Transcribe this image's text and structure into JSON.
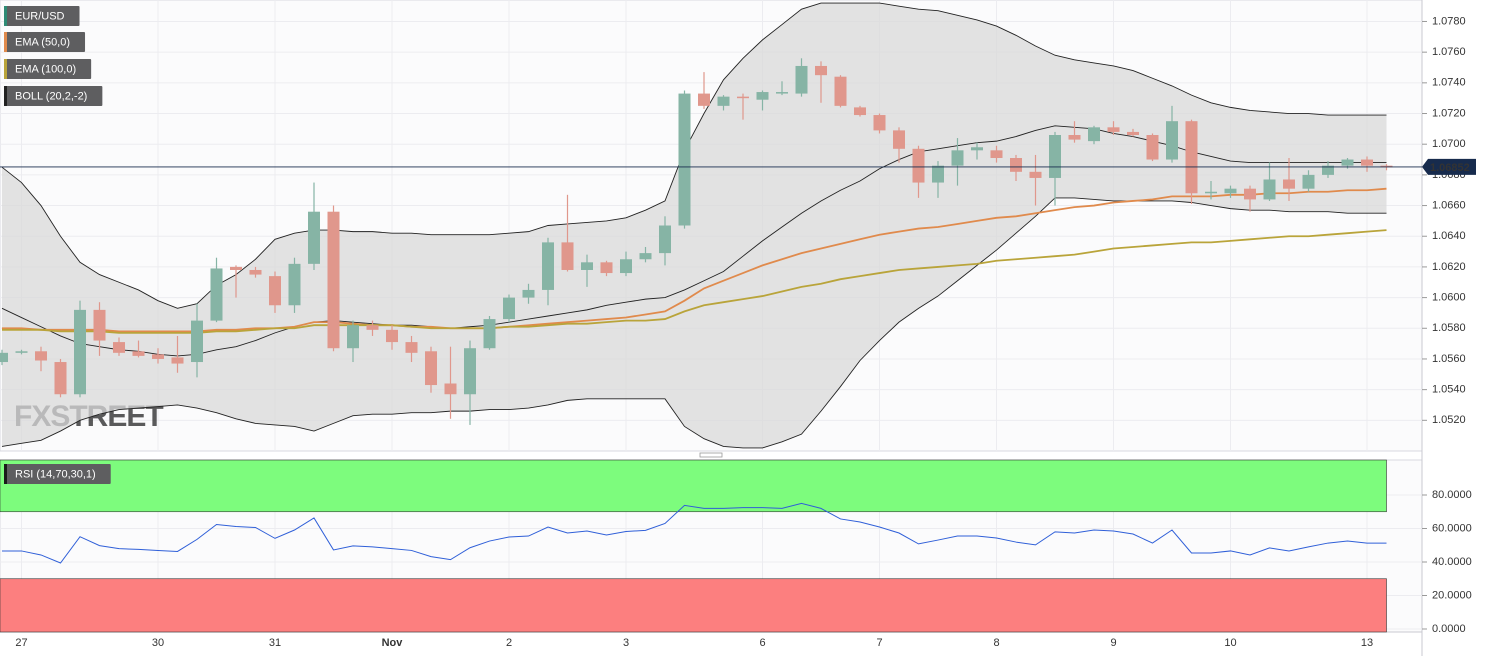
{
  "chart_data": {
    "type": "candlestick",
    "title": "EUR/USD",
    "watermark": "FXSTREET",
    "categories": [
      null,
      "27",
      null,
      null,
      null,
      null,
      null,
      null,
      "30",
      null,
      null,
      null,
      null,
      null,
      "31",
      null,
      null,
      null,
      null,
      null,
      "Nov",
      null,
      null,
      null,
      null,
      null,
      "2",
      null,
      null,
      null,
      null,
      null,
      "3",
      null,
      null,
      null,
      null,
      null,
      null,
      "6",
      null,
      null,
      null,
      null,
      null,
      "7",
      null,
      null,
      null,
      null,
      null,
      "8",
      null,
      null,
      null,
      null,
      null,
      "9",
      null,
      null,
      null,
      null,
      null,
      "10",
      null,
      null,
      null,
      null,
      null,
      null,
      "13",
      null
    ],
    "open": [
      1.0558,
      1.0564,
      1.0565,
      1.0558,
      1.0537,
      1.0592,
      1.0571,
      1.0565,
      1.0563,
      1.0561,
      1.0558,
      1.0585,
      1.062,
      1.0618,
      1.0614,
      1.0595,
      1.0622,
      1.0656,
      1.0567,
      1.0582,
      1.0579,
      1.0571,
      1.0565,
      1.0544,
      1.0537,
      1.0567,
      1.0586,
      1.06,
      1.0605,
      1.0636,
      1.0618,
      1.0623,
      1.0616,
      1.0625,
      1.0629,
      1.0647,
      1.0733,
      1.0725,
      1.0731,
      1.0729,
      1.0733,
      1.0733,
      1.0751,
      1.0744,
      1.0724,
      1.0719,
      1.0709,
      1.0697,
      1.0675,
      1.0686,
      1.0696,
      1.0696,
      1.0691,
      1.0682,
      1.0678,
      1.0706,
      1.0702,
      1.0711,
      1.0708,
      1.0706,
      1.069,
      1.0715,
      1.0668,
      1.0668,
      1.0671,
      1.0664,
      1.0677,
      1.0671,
      1.068,
      1.0686,
      1.069,
      1.0686
    ],
    "high": [
      1.0566,
      1.0566,
      1.0568,
      1.056,
      1.0598,
      1.0597,
      1.0574,
      1.0572,
      1.0567,
      1.0575,
      1.0596,
      1.0626,
      1.0621,
      1.062,
      1.0617,
      1.0626,
      1.0675,
      1.066,
      1.0585,
      1.0585,
      1.0582,
      1.0575,
      1.0568,
      1.0568,
      1.0572,
      1.0588,
      1.0602,
      1.0609,
      1.0639,
      1.0667,
      1.0628,
      1.0624,
      1.063,
      1.0633,
      1.0653,
      1.0735,
      1.0747,
      1.0732,
      1.0733,
      1.0735,
      1.0741,
      1.0756,
      1.0754,
      1.0745,
      1.0725,
      1.072,
      1.0711,
      1.0699,
      1.0689,
      1.0704,
      1.0701,
      1.0699,
      1.0693,
      1.0693,
      1.0708,
      1.0715,
      1.0712,
      1.0715,
      1.071,
      1.0707,
      1.0725,
      1.0716,
      1.0676,
      1.0673,
      1.0673,
      1.0688,
      1.0691,
      1.0683,
      1.0689,
      1.0691,
      1.0692,
      1.0687
    ],
    "low": [
      1.0556,
      1.0563,
      1.0552,
      1.0535,
      1.0535,
      1.0562,
      1.0562,
      1.0561,
      1.0557,
      1.0551,
      1.0548,
      1.0584,
      1.06,
      1.0613,
      1.059,
      1.059,
      1.0618,
      1.0565,
      1.0558,
      1.0575,
      1.0566,
      1.0558,
      1.0538,
      1.0521,
      1.0517,
      1.0566,
      1.0584,
      1.0596,
      1.0595,
      1.0617,
      1.0607,
      1.0614,
      1.0614,
      1.0623,
      1.0621,
      1.0645,
      1.0723,
      1.0722,
      1.0716,
      1.0722,
      1.0732,
      1.0731,
      1.0727,
      1.0724,
      1.0718,
      1.0707,
      1.0688,
      1.0665,
      1.0665,
      1.0673,
      1.069,
      1.0688,
      1.0676,
      1.066,
      1.066,
      1.0701,
      1.07,
      1.0706,
      1.0705,
      1.0689,
      1.0688,
      1.0661,
      1.0664,
      1.0665,
      1.0656,
      1.0663,
      1.0663,
      1.0669,
      1.0678,
      1.0684,
      1.0682,
      1.0683
    ],
    "close": [
      1.0564,
      1.0565,
      1.0559,
      1.0537,
      1.0592,
      1.0572,
      1.0564,
      1.0562,
      1.056,
      1.0557,
      1.0585,
      1.0619,
      1.0618,
      1.0615,
      1.0595,
      1.0622,
      1.0656,
      1.0567,
      1.0582,
      1.0579,
      1.0571,
      1.0564,
      1.0543,
      1.0537,
      1.0567,
      1.0586,
      1.06,
      1.0605,
      1.0636,
      1.0618,
      1.0623,
      1.0616,
      1.0625,
      1.0629,
      1.0647,
      1.0733,
      1.0725,
      1.0731,
      1.073,
      1.0734,
      1.0734,
      1.0751,
      1.0745,
      1.0725,
      1.0719,
      1.0709,
      1.0697,
      1.0675,
      1.0686,
      1.0696,
      1.0698,
      1.0691,
      1.0682,
      1.0678,
      1.0706,
      1.0703,
      1.0711,
      1.0708,
      1.0706,
      1.069,
      1.0715,
      1.0668,
      1.0669,
      1.0671,
      1.0664,
      1.0677,
      1.0671,
      1.068,
      1.0686,
      1.069,
      1.0686,
      1.0685
    ],
    "up_color": "#86b4a5",
    "down_color": "#e0978c",
    "title_color": "#2e8b75",
    "ylim": [
      1.05,
      1.0794
    ],
    "yticks": [
      {
        "value": 1.052,
        "label": "1.0520"
      },
      {
        "value": 1.054,
        "label": "1.0540"
      },
      {
        "value": 1.056,
        "label": "1.0560"
      },
      {
        "value": 1.058,
        "label": "1.0580"
      },
      {
        "value": 1.06,
        "label": "1.0600"
      },
      {
        "value": 1.062,
        "label": "1.0620"
      },
      {
        "value": 1.064,
        "label": "1.0640"
      },
      {
        "value": 1.066,
        "label": "1.0660"
      },
      {
        "value": 1.068,
        "label": "1.0680"
      },
      {
        "value": 1.07,
        "label": "1.0700"
      },
      {
        "value": 1.072,
        "label": "1.0720"
      },
      {
        "value": 1.074,
        "label": "1.0740"
      },
      {
        "value": 1.076,
        "label": "1.0760"
      },
      {
        "value": 1.078,
        "label": "1.0780"
      }
    ],
    "grid": true,
    "last_price": 1.06852,
    "last_price_color": "#172b4d",
    "overlays": [
      {
        "name": "EMA (50,0)",
        "color": "#e08a4c",
        "values": [
          1.058,
          1.058,
          1.0579,
          1.0579,
          1.0579,
          1.0579,
          1.0578,
          1.0578,
          1.0578,
          1.0578,
          1.0578,
          1.0579,
          1.0579,
          1.058,
          1.058,
          1.0581,
          1.0584,
          1.0584,
          1.0583,
          1.0582,
          1.0582,
          1.0581,
          1.0581,
          1.058,
          1.058,
          1.058,
          1.0581,
          1.0582,
          1.0583,
          1.0584,
          1.0585,
          1.0586,
          1.0587,
          1.0589,
          1.0591,
          1.0598,
          1.0606,
          1.0611,
          1.0616,
          1.0621,
          1.0625,
          1.0629,
          1.0632,
          1.0635,
          1.0638,
          1.0641,
          1.0643,
          1.0645,
          1.0646,
          1.0648,
          1.065,
          1.0652,
          1.0653,
          1.0655,
          1.0657,
          1.0659,
          1.066,
          1.0662,
          1.0663,
          1.0664,
          1.0666,
          1.0666,
          1.0666,
          1.0667,
          1.0667,
          1.0668,
          1.0668,
          1.0669,
          1.0669,
          1.067,
          1.067,
          1.0671
        ]
      },
      {
        "name": "EMA (100,0)",
        "color": "#b9a43a",
        "values": [
          1.0579,
          1.0579,
          1.0579,
          1.0578,
          1.0578,
          1.0578,
          1.0577,
          1.0577,
          1.0577,
          1.0577,
          1.0577,
          1.0578,
          1.0578,
          1.0579,
          1.058,
          1.058,
          1.0582,
          1.0582,
          1.0582,
          1.0582,
          1.0582,
          1.0581,
          1.058,
          1.058,
          1.058,
          1.058,
          1.0581,
          1.0581,
          1.0582,
          1.0583,
          1.0583,
          1.0584,
          1.0585,
          1.0585,
          1.0586,
          1.0591,
          1.0595,
          1.0597,
          1.0599,
          1.0601,
          1.0604,
          1.0607,
          1.0609,
          1.0612,
          1.0614,
          1.0616,
          1.0618,
          1.0619,
          1.062,
          1.0621,
          1.0622,
          1.0624,
          1.0625,
          1.0626,
          1.0627,
          1.0628,
          1.063,
          1.0632,
          1.0633,
          1.0634,
          1.0635,
          1.0636,
          1.0636,
          1.0637,
          1.0638,
          1.0639,
          1.064,
          1.064,
          1.0641,
          1.0642,
          1.0643,
          1.0644
        ]
      }
    ],
    "bollinger": {
      "name": "BOLL (20,2,-2)",
      "color": "#222222",
      "fill": "#d9d9d9",
      "upper": [
        1.0685,
        1.0675,
        1.066,
        1.064,
        1.0623,
        1.0615,
        1.061,
        1.0605,
        1.0598,
        1.0593,
        1.0596,
        1.0608,
        1.0615,
        1.0625,
        1.0638,
        1.0642,
        1.0644,
        1.0644,
        1.0643,
        1.0643,
        1.0642,
        1.0642,
        1.0641,
        1.0641,
        1.0641,
        1.0641,
        1.0642,
        1.0643,
        1.0647,
        1.0648,
        1.0649,
        1.065,
        1.0652,
        1.0657,
        1.0663,
        1.0696,
        1.072,
        1.0742,
        1.0756,
        1.0768,
        1.0778,
        1.0788,
        1.0792,
        1.0792,
        1.0792,
        1.0792,
        1.079,
        1.0788,
        1.0787,
        1.0784,
        1.0781,
        1.0777,
        1.0771,
        1.0764,
        1.0758,
        1.0755,
        1.0753,
        1.0751,
        1.0748,
        1.0743,
        1.0738,
        1.0732,
        1.0727,
        1.0724,
        1.0722,
        1.0721,
        1.072,
        1.072,
        1.0719,
        1.0719,
        1.0719,
        1.0719
      ],
      "middle": [
        1.0593,
        1.0587,
        1.0581,
        1.0575,
        1.057,
        1.0568,
        1.0566,
        1.0565,
        1.0563,
        1.0562,
        1.0563,
        1.0566,
        1.0568,
        1.0572,
        1.0577,
        1.0581,
        1.0584,
        1.0585,
        1.0584,
        1.0583,
        1.0582,
        1.0582,
        1.0581,
        1.058,
        1.0581,
        1.0582,
        1.0584,
        1.0586,
        1.0588,
        1.059,
        1.0592,
        1.0595,
        1.0597,
        1.0599,
        1.06,
        1.0605,
        1.0611,
        1.0617,
        1.0627,
        1.0637,
        1.0646,
        1.0655,
        1.0663,
        1.067,
        1.0676,
        1.0684,
        1.069,
        1.0695,
        1.0697,
        1.0699,
        1.0701,
        1.0702,
        1.0705,
        1.0709,
        1.0712,
        1.0711,
        1.071,
        1.0707,
        1.0705,
        1.0702,
        1.0699,
        1.0695,
        1.0692,
        1.0689,
        1.0688,
        1.0688,
        1.0688,
        1.0688,
        1.0688,
        1.0688,
        1.0688,
        1.0688
      ],
      "lower": [
        1.0503,
        1.0505,
        1.0507,
        1.0513,
        1.052,
        1.0524,
        1.0527,
        1.0528,
        1.0529,
        1.053,
        1.0528,
        1.0525,
        1.0521,
        1.0518,
        1.0517,
        1.0516,
        1.0513,
        1.0518,
        1.0523,
        1.0524,
        1.0524,
        1.0525,
        1.0525,
        1.0526,
        1.0526,
        1.0527,
        1.0527,
        1.0528,
        1.053,
        1.0533,
        1.0534,
        1.0534,
        1.0534,
        1.0534,
        1.0534,
        1.0516,
        1.0508,
        1.0503,
        1.0502,
        1.0502,
        1.0506,
        1.0511,
        1.0526,
        1.0542,
        1.0559,
        1.0572,
        1.0584,
        1.0593,
        1.0601,
        1.0611,
        1.0621,
        1.0631,
        1.0642,
        1.0653,
        1.0665,
        1.0665,
        1.0664,
        1.0663,
        1.0663,
        1.0663,
        1.0663,
        1.0662,
        1.066,
        1.0658,
        1.0657,
        1.0657,
        1.0656,
        1.0656,
        1.0656,
        1.0655,
        1.0655,
        1.0655
      ]
    },
    "rsi": {
      "type": "line",
      "name": "RSI (14,70,30,1)",
      "color": "#2f5fd8",
      "values": [
        46.6,
        46.6,
        44.2,
        39.4,
        55.1,
        49.8,
        48.0,
        47.5,
        46.9,
        46.3,
        53.5,
        62.4,
        61.2,
        60.6,
        54.1,
        59.1,
        66.3,
        47.2,
        49.6,
        49.0,
        48.0,
        46.9,
        43.2,
        41.4,
        48.5,
        52.5,
        54.9,
        55.5,
        60.9,
        57.3,
        58.5,
        56.1,
        58.2,
        58.9,
        63.0,
        73.8,
        72.0,
        72.0,
        72.5,
        72.5,
        72.0,
        75.0,
        72.0,
        65.7,
        63.9,
        60.9,
        57.3,
        50.8,
        53.1,
        55.5,
        55.5,
        54.3,
        51.9,
        50.2,
        58.0,
        57.3,
        59.1,
        58.5,
        56.7,
        51.3,
        59.1,
        45.4,
        45.4,
        46.6,
        44.2,
        48.4,
        46.6,
        49.0,
        51.3,
        52.5,
        51.3,
        51.3
      ],
      "ylim": [
        -1.8,
        100.9
      ],
      "yticks": [
        {
          "value": 0,
          "label": "0.0000"
        },
        {
          "value": 20,
          "label": "20.0000"
        },
        {
          "value": 40,
          "label": "40.0000"
        },
        {
          "value": 60,
          "label": "60.0000"
        },
        {
          "value": 80,
          "label": "80.0000"
        }
      ],
      "overbought": 70,
      "oversold": 30,
      "overbought_color": "#7dfc7d",
      "oversold_color": "#fc7f7f"
    }
  }
}
